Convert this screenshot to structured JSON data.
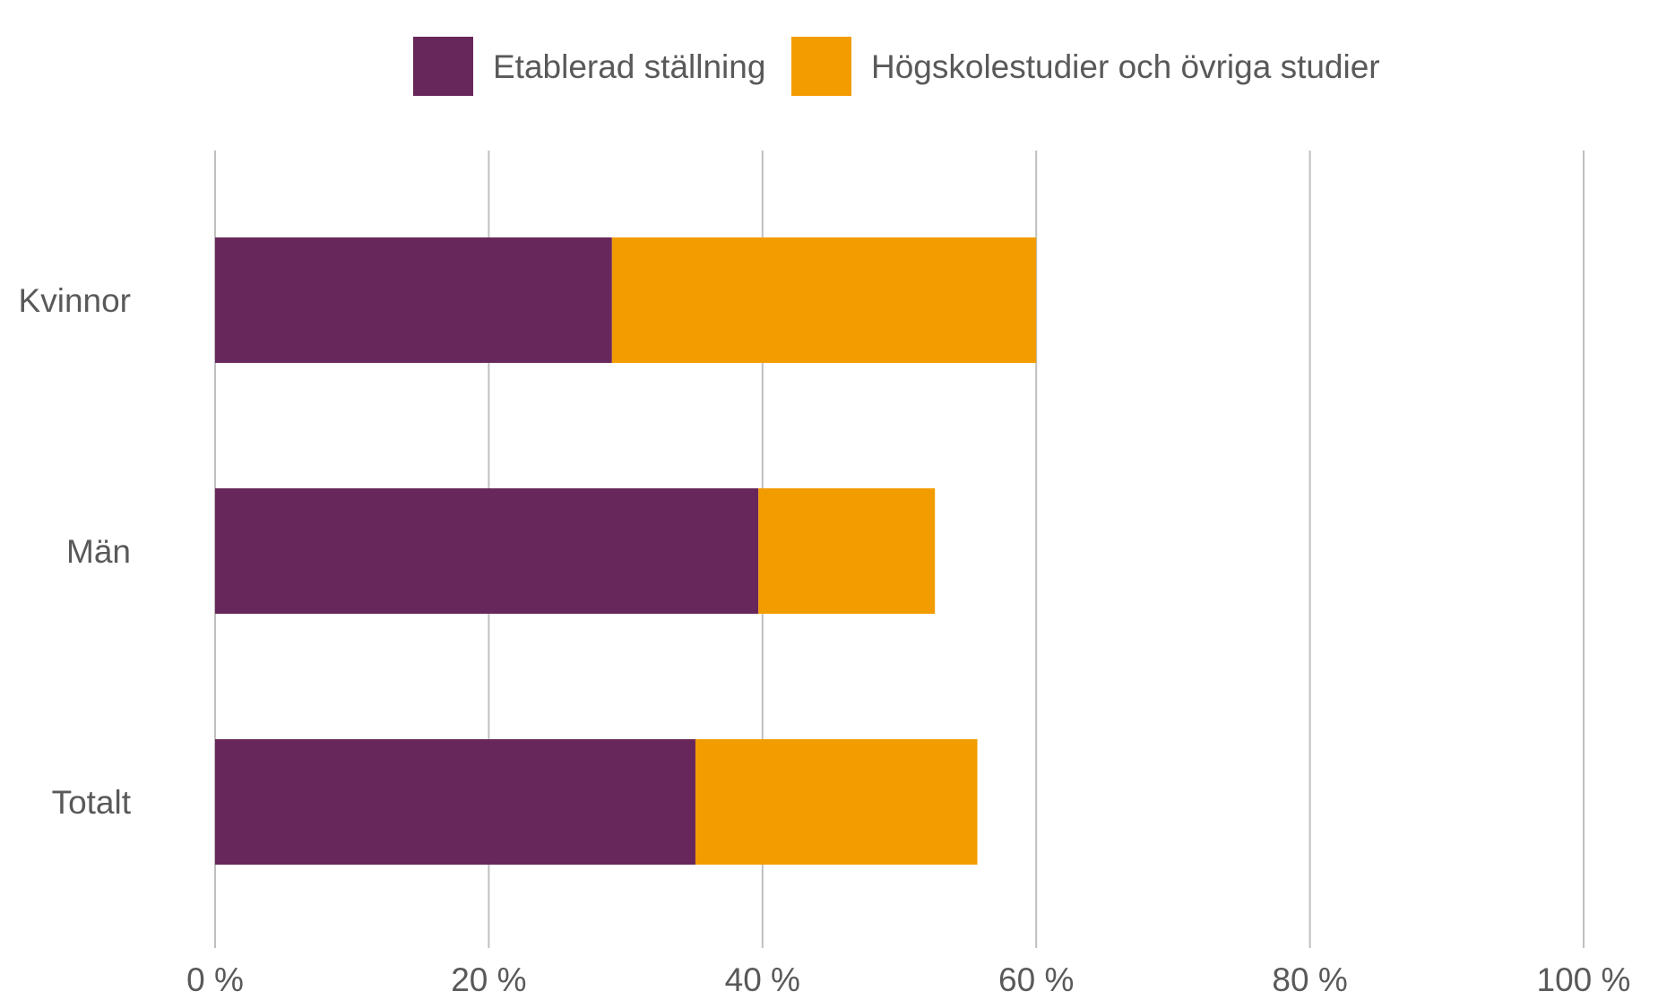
{
  "chart_data": {
    "type": "bar",
    "orientation": "horizontal",
    "stacked": true,
    "categories": [
      "Kvinnor",
      "Män",
      "Totalt"
    ],
    "series": [
      {
        "name": "Etablerad ställning",
        "values": [
          29,
          39.7,
          35.1
        ],
        "color": "#68275a"
      },
      {
        "name": "Högskolestudier och övriga studier",
        "values": [
          31,
          12.9,
          20.6
        ],
        "color": "#f39c00"
      }
    ],
    "xlim": [
      0,
      100
    ],
    "xticks": [
      0,
      20,
      40,
      60,
      80,
      100
    ],
    "xtick_labels": [
      "0 %",
      "20 %",
      "40 %",
      "60 %",
      "80 %",
      "100 %"
    ],
    "grid": true,
    "legend": "top-center"
  }
}
